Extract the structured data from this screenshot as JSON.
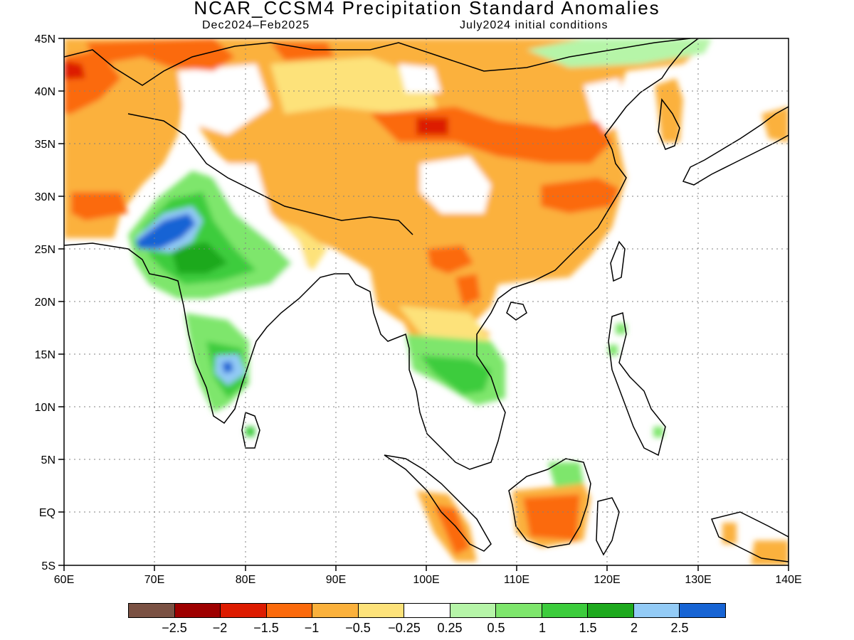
{
  "header": {
    "title": "NCAR_CCSM4 Precipitation Standard Anomalies",
    "season": "Dec2024–Feb2025",
    "init": "July2024 initial conditions"
  },
  "map": {
    "lon_range": [
      60,
      140
    ],
    "lat_range": [
      -5,
      45
    ],
    "lon_ticks": [
      "60E",
      "70E",
      "80E",
      "90E",
      "100E",
      "110E",
      "120E",
      "130E",
      "140E"
    ],
    "lat_ticks": [
      "45N",
      "40N",
      "35N",
      "30N",
      "25N",
      "20N",
      "15N",
      "10N",
      "5N",
      "EQ",
      "5S"
    ],
    "grid": true
  },
  "colorbar": {
    "colors": [
      "#7a5143",
      "#9e0000",
      "#dd1b00",
      "#fb6a0c",
      "#fbb13c",
      "#fde27a",
      "#ffffff",
      "#b6f5a8",
      "#7ee66c",
      "#3ccc3c",
      "#1ea91e",
      "#93cbf6",
      "#1764d4"
    ],
    "labels": [
      "−2.5",
      "−2",
      "−1.5",
      "−1",
      "−0.5",
      "−0.25",
      "0.25",
      "0.5",
      "1",
      "1.5",
      "2",
      "2.5"
    ]
  }
}
